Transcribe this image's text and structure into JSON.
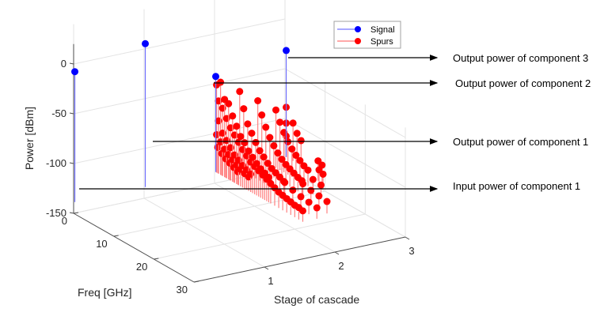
{
  "chart_data": {
    "type": "stem3",
    "title": "",
    "xlabel": "Stage of cascade",
    "ylabel": "Freq [GHz]",
    "zlabel": "Power [dBm]",
    "xlim": [
      0,
      3
    ],
    "ylim": [
      0,
      30
    ],
    "zlim": [
      -150,
      0
    ],
    "x_ticks": [
      "1",
      "2",
      "3"
    ],
    "y_ticks": [
      "0",
      "10",
      "20",
      "30"
    ],
    "z_ticks": [
      "0",
      "-50",
      "-100",
      "-150"
    ],
    "grid": true,
    "stem_baseline": -138,
    "legend": {
      "position": "top-center",
      "entries": [
        {
          "label": "Signal",
          "color": "#0000ff"
        },
        {
          "label": "Spurs",
          "color": "#ff0000"
        }
      ]
    },
    "series": [
      {
        "name": "Signal",
        "color": "#0000ff",
        "points": [
          {
            "stage": 0,
            "freq": 0.3,
            "power": -7
          },
          {
            "stage": 1,
            "freq": 0.3,
            "power": 6
          },
          {
            "stage": 2,
            "freq": 0.3,
            "power": -42
          },
          {
            "stage": 3,
            "freq": 0.3,
            "power": -31
          }
        ]
      },
      {
        "name": "Spurs",
        "color": "#ff0000",
        "points": [
          {
            "stage": 2,
            "freq": 0.5,
            "power": -50
          },
          {
            "stage": 2,
            "freq": 1.0,
            "power": -65
          },
          {
            "stage": 2,
            "freq": 1.5,
            "power": -45
          },
          {
            "stage": 2,
            "freq": 2.0,
            "power": -70
          },
          {
            "stage": 2,
            "freq": 2.5,
            "power": -60
          },
          {
            "stage": 2,
            "freq": 3.0,
            "power": -78
          },
          {
            "stage": 2,
            "freq": 3.5,
            "power": -62
          },
          {
            "stage": 2,
            "freq": 4.0,
            "power": -85
          },
          {
            "stage": 2,
            "freq": 4.5,
            "power": -72
          },
          {
            "stage": 2,
            "freq": 5.0,
            "power": -90
          },
          {
            "stage": 2,
            "freq": 5.5,
            "power": -80
          },
          {
            "stage": 2,
            "freq": 6.0,
            "power": -95
          },
          {
            "stage": 2,
            "freq": 6.5,
            "power": -88
          },
          {
            "stage": 2,
            "freq": 7.0,
            "power": -100
          },
          {
            "stage": 2,
            "freq": 7.5,
            "power": -92
          },
          {
            "stage": 2,
            "freq": 8.0,
            "power": -104
          },
          {
            "stage": 2,
            "freq": 8.5,
            "power": -98
          },
          {
            "stage": 2,
            "freq": 9.0,
            "power": -108
          },
          {
            "stage": 2,
            "freq": 9.5,
            "power": -102
          },
          {
            "stage": 2,
            "freq": 10.0,
            "power": -110
          },
          {
            "stage": 2,
            "freq": 10.5,
            "power": -106
          },
          {
            "stage": 2,
            "freq": 11.0,
            "power": -112
          },
          {
            "stage": 2,
            "freq": 11.5,
            "power": -109
          },
          {
            "stage": 2,
            "freq": 12.0,
            "power": -114
          },
          {
            "stage": 2,
            "freq": 12.5,
            "power": -111
          },
          {
            "stage": 2,
            "freq": 13.0,
            "power": -116
          },
          {
            "stage": 2,
            "freq": 13.5,
            "power": -113
          },
          {
            "stage": 2,
            "freq": 14.0,
            "power": -118
          },
          {
            "stage": 2,
            "freq": 15.0,
            "power": -120
          },
          {
            "stage": 2,
            "freq": 16.0,
            "power": -122
          },
          {
            "stage": 2,
            "freq": 1.0,
            "power": -85
          },
          {
            "stage": 2,
            "freq": 2.0,
            "power": -95
          },
          {
            "stage": 2,
            "freq": 3.0,
            "power": -100
          },
          {
            "stage": 2,
            "freq": 4.0,
            "power": -105
          },
          {
            "stage": 2,
            "freq": 5.0,
            "power": -110
          },
          {
            "stage": 2,
            "freq": 6.0,
            "power": -113
          },
          {
            "stage": 2,
            "freq": 7.0,
            "power": -116
          },
          {
            "stage": 2,
            "freq": 8.0,
            "power": -118
          },
          {
            "stage": 2,
            "freq": 9.0,
            "power": -120
          },
          {
            "stage": 2,
            "freq": 0.5,
            "power": -100
          },
          {
            "stage": 2,
            "freq": 1.5,
            "power": -105
          },
          {
            "stage": 2,
            "freq": 2.5,
            "power": -110
          },
          {
            "stage": 2,
            "freq": 3.5,
            "power": -113
          },
          {
            "stage": 2,
            "freq": 4.5,
            "power": -116
          },
          {
            "stage": 2,
            "freq": 5.5,
            "power": -119
          },
          {
            "stage": 2,
            "freq": 6.5,
            "power": -121
          },
          {
            "stage": 2,
            "freq": 7.5,
            "power": -123
          },
          {
            "stage": 2,
            "freq": 8.5,
            "power": -124
          },
          {
            "stage": 2,
            "freq": 0.8,
            "power": -112
          },
          {
            "stage": 2,
            "freq": 1.8,
            "power": -116
          },
          {
            "stage": 2,
            "freq": 2.8,
            "power": -119
          },
          {
            "stage": 2,
            "freq": 3.8,
            "power": -121
          },
          {
            "stage": 2,
            "freq": 4.8,
            "power": -123
          },
          {
            "stage": 2,
            "freq": 5.8,
            "power": -125
          },
          {
            "stage": 2.3,
            "freq": 1.0,
            "power": -60
          },
          {
            "stage": 2.3,
            "freq": 2.0,
            "power": -75
          },
          {
            "stage": 2.3,
            "freq": 3.0,
            "power": -88
          },
          {
            "stage": 2.3,
            "freq": 4.0,
            "power": -95
          },
          {
            "stage": 2.3,
            "freq": 5.0,
            "power": -102
          },
          {
            "stage": 2.3,
            "freq": 6.0,
            "power": -108
          },
          {
            "stage": 2.3,
            "freq": 7.0,
            "power": -112
          },
          {
            "stage": 2.3,
            "freq": 8.0,
            "power": -116
          },
          {
            "stage": 2.3,
            "freq": 9.0,
            "power": -119
          },
          {
            "stage": 2.3,
            "freq": 10.0,
            "power": -121
          },
          {
            "stage": 2.3,
            "freq": 11.0,
            "power": -123
          },
          {
            "stage": 2.3,
            "freq": 12.0,
            "power": -125
          },
          {
            "stage": 2.5,
            "freq": 2.0,
            "power": -70
          },
          {
            "stage": 2.5,
            "freq": 3.0,
            "power": -82
          },
          {
            "stage": 2.5,
            "freq": 4.0,
            "power": -92
          },
          {
            "stage": 2.5,
            "freq": 5.0,
            "power": -100
          },
          {
            "stage": 2.5,
            "freq": 6.0,
            "power": -106
          },
          {
            "stage": 2.5,
            "freq": 7.0,
            "power": -111
          },
          {
            "stage": 2.5,
            "freq": 8.0,
            "power": -115
          },
          {
            "stage": 2.5,
            "freq": 9.0,
            "power": -118
          },
          {
            "stage": 2.5,
            "freq": 10.0,
            "power": -120
          },
          {
            "stage": 2.5,
            "freq": 11.0,
            "power": -122
          },
          {
            "stage": 2.5,
            "freq": 12.0,
            "power": -124
          },
          {
            "stage": 2.5,
            "freq": 13.0,
            "power": -125
          },
          {
            "stage": 2.7,
            "freq": 3.0,
            "power": -80
          },
          {
            "stage": 2.7,
            "freq": 4.0,
            "power": -90
          },
          {
            "stage": 2.7,
            "freq": 5.0,
            "power": -98
          },
          {
            "stage": 2.7,
            "freq": 6.0,
            "power": -105
          },
          {
            "stage": 2.7,
            "freq": 7.0,
            "power": -110
          },
          {
            "stage": 2.7,
            "freq": 8.0,
            "power": -114
          },
          {
            "stage": 2.7,
            "freq": 9.0,
            "power": -117
          },
          {
            "stage": 2.7,
            "freq": 10.0,
            "power": -120
          },
          {
            "stage": 2.7,
            "freq": 11.0,
            "power": -122
          },
          {
            "stage": 3,
            "freq": 0.3,
            "power": -88
          },
          {
            "stage": 3,
            "freq": 0.3,
            "power": -104
          },
          {
            "stage": 3,
            "freq": 0.3,
            "power": -117
          },
          {
            "stage": 3,
            "freq": 2.0,
            "power": -100
          },
          {
            "stage": 3,
            "freq": 3.0,
            "power": -108
          },
          {
            "stage": 3,
            "freq": 4.0,
            "power": -113
          },
          {
            "stage": 2,
            "freq": 17.0,
            "power": -123
          },
          {
            "stage": 2,
            "freq": 18.0,
            "power": -124
          },
          {
            "stage": 2,
            "freq": 19.0,
            "power": -125
          },
          {
            "stage": 2,
            "freq": 20.0,
            "power": -126
          },
          {
            "stage": 2,
            "freq": 21.0,
            "power": -126
          },
          {
            "stage": 2,
            "freq": 22.0,
            "power": -127
          },
          {
            "stage": 2.2,
            "freq": 14.0,
            "power": -120
          },
          {
            "stage": 2.2,
            "freq": 16.0,
            "power": -123
          },
          {
            "stage": 2.2,
            "freq": 18.0,
            "power": -125
          },
          {
            "stage": 2.2,
            "freq": 20.0,
            "power": -126
          },
          {
            "stage": 2.2,
            "freq": 22.0,
            "power": -127
          },
          {
            "stage": 2.4,
            "freq": 15.0,
            "power": -122
          },
          {
            "stage": 2.4,
            "freq": 17.0,
            "power": -124
          },
          {
            "stage": 2.4,
            "freq": 19.0,
            "power": -125
          },
          {
            "stage": 2.4,
            "freq": 21.0,
            "power": -126
          },
          {
            "stage": 2.6,
            "freq": 14.0,
            "power": -123
          },
          {
            "stage": 2.6,
            "freq": 16.0,
            "power": -124
          },
          {
            "stage": 2.8,
            "freq": 12.0,
            "power": -121
          },
          {
            "stage": 2.8,
            "freq": 13.0,
            "power": -123
          },
          {
            "stage": 2.9,
            "freq": 10.0,
            "power": -118
          },
          {
            "stage": 2.9,
            "freq": 11.0,
            "power": -120
          }
        ]
      }
    ],
    "annotations": [
      {
        "text": "Output power of component 3",
        "target": "Signal stage 3"
      },
      {
        "text": "Output power of component 2",
        "target": "Signal stage 2"
      },
      {
        "text": "Output power of component 1",
        "target": "Signal stage 1"
      },
      {
        "text": "Input power of component 1",
        "target": "Signal stage 0"
      }
    ]
  }
}
